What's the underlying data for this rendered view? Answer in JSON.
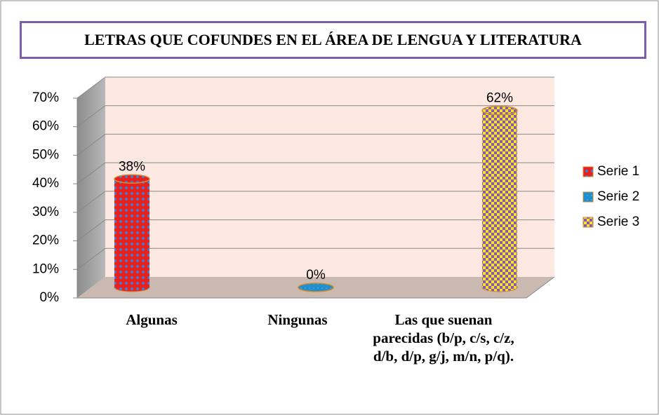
{
  "chart_data": {
    "type": "bar3d",
    "title": "LETRAS QUE COFUNDES EN EL ÁREA DE LENGUA Y LITERATURA",
    "categories": [
      "Algunas",
      "Ningunas",
      "Las que suenan parecidas (b/p, c/s, c/z, d/b, d/p, g/j, m/n, p/q)."
    ],
    "series": [
      {
        "name": "Serie 1",
        "color": "#e8201e",
        "values": [
          38,
          null,
          null
        ],
        "value_labels": [
          "38%",
          null,
          null
        ]
      },
      {
        "name": "Serie 2",
        "color": "#1f8fcf",
        "values": [
          null,
          0,
          null
        ],
        "value_labels": [
          null,
          "0%",
          null
        ]
      },
      {
        "name": "Serie 3",
        "color": "#f5e03a",
        "values": [
          null,
          null,
          62
        ],
        "value_labels": [
          null,
          null,
          "62%"
        ]
      }
    ],
    "ylim": [
      0,
      70
    ],
    "yticks": [
      {
        "value": 0,
        "label": "0%"
      },
      {
        "value": 10,
        "label": "10%"
      },
      {
        "value": 20,
        "label": "20%"
      },
      {
        "value": 30,
        "label": "30%"
      },
      {
        "value": 40,
        "label": "40%"
      },
      {
        "value": 50,
        "label": "50%"
      },
      {
        "value": 60,
        "label": "60%"
      },
      {
        "value": 70,
        "label": "70%"
      }
    ],
    "grid": true,
    "legend": "right"
  }
}
